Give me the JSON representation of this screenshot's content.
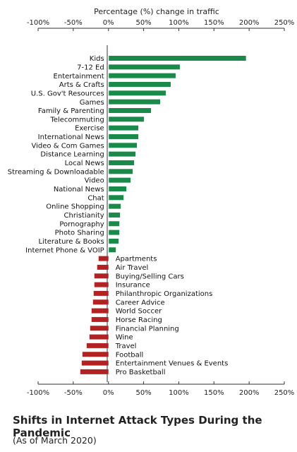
{
  "chart_data": {
    "type": "bar",
    "orientation": "horizontal",
    "xlabel": "Percentage (%) change in traffic",
    "xlim": [
      -100,
      250
    ],
    "x_ticks": [
      "-100%",
      "-50%",
      "0%",
      "50%",
      "100%",
      "150%",
      "200%",
      "250%"
    ],
    "grid": false,
    "positive_color": "#1a8a4a",
    "negative_color": "#b22222",
    "categories": [
      "Kids",
      "7-12 Ed",
      "Entertainment",
      "Arts & Crafts",
      "U.S. Gov't Resources",
      "Games",
      "Family & Parenting",
      "Telecommuting",
      "Exercise",
      "International News",
      "Video & Com Games",
      "Distance Learning",
      "Local News",
      "Streaming & Downloadable",
      "Video",
      "National News",
      "Chat",
      "Online Shopping",
      "Christianity",
      "Pornography",
      "Photo Sharing",
      "Literature & Books",
      "Internet Phone & VOIP",
      "Apartments",
      "Air Travel",
      "Buying/Selling Cars",
      "Insurance",
      "Philanthropic Organizations",
      "Career Advice",
      "World Soccer",
      "Horse Racing",
      "Financial Planning",
      "Wine",
      "Travel",
      "Football",
      "Entertainment Venues & Events",
      "Pro Basketball"
    ],
    "values": [
      195,
      101,
      95,
      88,
      81,
      73,
      60,
      50,
      42,
      42,
      40,
      38,
      36,
      34,
      31,
      25,
      21,
      17,
      16,
      15,
      15,
      14,
      10,
      -14,
      -16,
      -20,
      -20,
      -21,
      -22,
      -24,
      -24,
      -26,
      -27,
      -31,
      -37,
      -38,
      -40
    ]
  },
  "caption": {
    "title": "Shifts in Internet Attack Types During the Pandemic",
    "subtitle": "(As of March 2020)"
  }
}
